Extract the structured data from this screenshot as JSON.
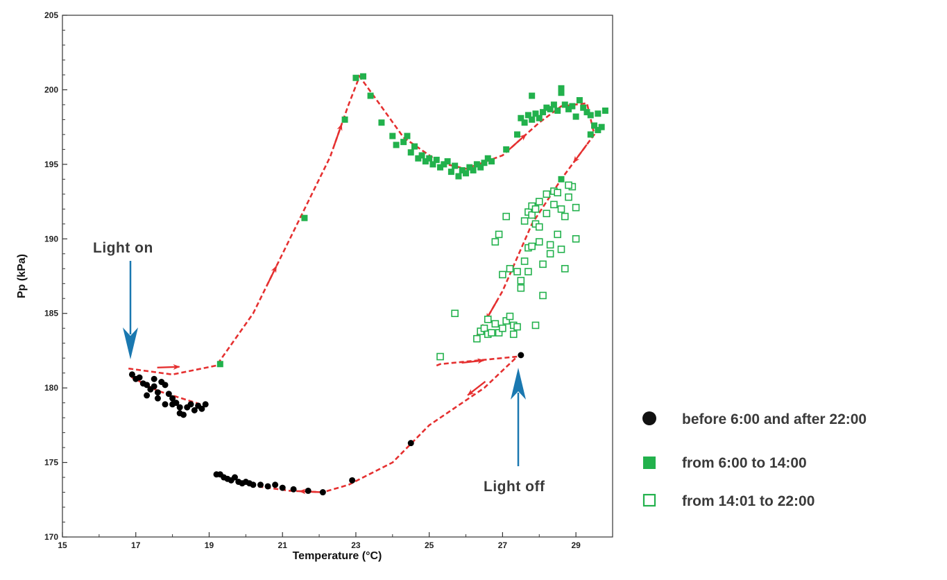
{
  "chart_data": {
    "type": "scatter",
    "title": "",
    "xlabel": "Temperature (°C)",
    "ylabel": "Pp (kPa)",
    "xlim": [
      15,
      30
    ],
    "ylim": [
      170,
      205
    ],
    "xticks": [
      15,
      17,
      19,
      21,
      23,
      25,
      27,
      29
    ],
    "yticks": [
      170,
      175,
      180,
      185,
      190,
      195,
      200,
      205
    ],
    "grid": false,
    "legend_position": "right",
    "colors": {
      "night": "#000000",
      "morning": "#22b14c",
      "afternoon": "#22b14c",
      "trajectory": "#e53030",
      "annotation_arrow": "#1a78b0"
    },
    "annotations": [
      {
        "text": "Light on",
        "x": 16.8,
        "y": 181.2
      },
      {
        "text": "Light off",
        "x": 27.4,
        "y": 182.0
      }
    ],
    "trajectory_path": [
      [
        16.8,
        181.3
      ],
      [
        18.0,
        180.9
      ],
      [
        19.2,
        181.5
      ],
      [
        20.2,
        185.0
      ],
      [
        21.3,
        190.5
      ],
      [
        22.3,
        195.5
      ],
      [
        22.8,
        199.0
      ],
      [
        23.1,
        200.9
      ],
      [
        23.6,
        199.2
      ],
      [
        24.3,
        196.8
      ],
      [
        25.3,
        195.1
      ],
      [
        26.0,
        194.7
      ],
      [
        27.0,
        195.6
      ],
      [
        28.0,
        197.8
      ],
      [
        28.6,
        198.9
      ],
      [
        29.3,
        199.1
      ],
      [
        29.5,
        197.0
      ],
      [
        28.6,
        194.0
      ],
      [
        27.8,
        191.0
      ],
      [
        27.0,
        186.5
      ],
      [
        26.3,
        183.5
      ],
      [
        25.2,
        181.5
      ],
      [
        25.3,
        181.6
      ],
      [
        27.4,
        182.1
      ],
      [
        26.5,
        180.0
      ],
      [
        25.0,
        177.5
      ],
      [
        24.0,
        175.0
      ],
      [
        22.8,
        173.5
      ],
      [
        22.1,
        173.0
      ],
      [
        21.2,
        173.1
      ],
      [
        20.3,
        173.4
      ],
      [
        19.3,
        174.1
      ],
      [
        16.9,
        180.7
      ],
      [
        17.6,
        179.8
      ],
      [
        18.9,
        178.8
      ]
    ],
    "series": [
      {
        "name": "before 6:00 and after 22:00",
        "marker": "circle-filled",
        "points": [
          [
            16.9,
            180.9
          ],
          [
            17.0,
            180.6
          ],
          [
            17.1,
            180.7
          ],
          [
            17.2,
            180.3
          ],
          [
            17.3,
            180.2
          ],
          [
            17.4,
            179.9
          ],
          [
            17.5,
            180.6
          ],
          [
            17.5,
            180.1
          ],
          [
            17.6,
            179.7
          ],
          [
            17.7,
            180.4
          ],
          [
            17.8,
            180.2
          ],
          [
            17.9,
            179.6
          ],
          [
            18.0,
            179.3
          ],
          [
            18.0,
            178.9
          ],
          [
            18.1,
            179.0
          ],
          [
            18.2,
            178.7
          ],
          [
            18.2,
            178.3
          ],
          [
            18.3,
            178.2
          ],
          [
            18.4,
            178.7
          ],
          [
            18.5,
            178.9
          ],
          [
            18.6,
            178.5
          ],
          [
            18.7,
            178.8
          ],
          [
            18.8,
            178.6
          ],
          [
            18.9,
            178.9
          ],
          [
            17.3,
            179.5
          ],
          [
            17.6,
            179.3
          ],
          [
            17.8,
            178.9
          ],
          [
            19.2,
            174.2
          ],
          [
            19.3,
            174.2
          ],
          [
            19.4,
            174.0
          ],
          [
            19.5,
            173.9
          ],
          [
            19.6,
            173.8
          ],
          [
            19.7,
            174.0
          ],
          [
            19.8,
            173.7
          ],
          [
            19.9,
            173.6
          ],
          [
            20.0,
            173.7
          ],
          [
            20.1,
            173.6
          ],
          [
            20.2,
            173.5
          ],
          [
            20.4,
            173.5
          ],
          [
            20.6,
            173.4
          ],
          [
            20.8,
            173.5
          ],
          [
            21.0,
            173.3
          ],
          [
            21.3,
            173.2
          ],
          [
            21.7,
            173.1
          ],
          [
            22.1,
            173.0
          ],
          [
            22.9,
            173.8
          ],
          [
            24.5,
            176.3
          ],
          [
            27.5,
            182.2
          ]
        ]
      },
      {
        "name": "from 6:00 to 14:00",
        "marker": "square-filled",
        "points": [
          [
            19.3,
            181.6
          ],
          [
            21.6,
            191.4
          ],
          [
            22.7,
            198.0
          ],
          [
            23.0,
            200.8
          ],
          [
            23.2,
            200.9
          ],
          [
            23.4,
            199.6
          ],
          [
            23.7,
            197.8
          ],
          [
            24.0,
            196.9
          ],
          [
            24.1,
            196.3
          ],
          [
            24.3,
            196.5
          ],
          [
            24.4,
            196.9
          ],
          [
            24.5,
            195.8
          ],
          [
            24.6,
            196.2
          ],
          [
            24.7,
            195.4
          ],
          [
            24.8,
            195.6
          ],
          [
            24.9,
            195.2
          ],
          [
            25.0,
            195.4
          ],
          [
            25.1,
            195.0
          ],
          [
            25.2,
            195.3
          ],
          [
            25.3,
            194.8
          ],
          [
            25.4,
            195.0
          ],
          [
            25.5,
            195.2
          ],
          [
            25.6,
            194.5
          ],
          [
            25.7,
            194.9
          ],
          [
            25.8,
            194.2
          ],
          [
            25.9,
            194.6
          ],
          [
            26.0,
            194.4
          ],
          [
            26.1,
            194.8
          ],
          [
            26.2,
            194.6
          ],
          [
            26.3,
            195.0
          ],
          [
            26.4,
            194.8
          ],
          [
            26.5,
            195.1
          ],
          [
            26.6,
            195.4
          ],
          [
            26.7,
            195.2
          ],
          [
            27.1,
            196.0
          ],
          [
            27.4,
            197.0
          ],
          [
            27.5,
            198.1
          ],
          [
            27.6,
            197.8
          ],
          [
            27.7,
            198.3
          ],
          [
            27.8,
            198.0
          ],
          [
            27.8,
            199.6
          ],
          [
            27.9,
            198.4
          ],
          [
            28.0,
            198.1
          ],
          [
            28.1,
            198.5
          ],
          [
            28.2,
            198.8
          ],
          [
            28.3,
            198.7
          ],
          [
            28.4,
            199.0
          ],
          [
            28.5,
            198.6
          ],
          [
            28.6,
            200.1
          ],
          [
            28.6,
            199.8
          ],
          [
            28.7,
            199.0
          ],
          [
            28.8,
            198.7
          ],
          [
            28.9,
            198.9
          ],
          [
            29.0,
            198.2
          ],
          [
            29.1,
            199.3
          ],
          [
            29.2,
            198.8
          ],
          [
            29.3,
            198.5
          ],
          [
            29.4,
            198.3
          ],
          [
            29.5,
            197.6
          ],
          [
            29.6,
            198.4
          ],
          [
            29.7,
            197.5
          ],
          [
            29.8,
            198.6
          ],
          [
            29.4,
            197.0
          ],
          [
            29.6,
            197.3
          ],
          [
            28.6,
            194.0
          ]
        ]
      },
      {
        "name": "from 14:01 to 22:00",
        "marker": "square-open",
        "points": [
          [
            25.3,
            182.1
          ],
          [
            25.7,
            185.0
          ],
          [
            26.3,
            183.3
          ],
          [
            26.4,
            183.8
          ],
          [
            26.5,
            184.0
          ],
          [
            26.6,
            184.6
          ],
          [
            26.6,
            183.6
          ],
          [
            26.7,
            183.7
          ],
          [
            26.8,
            184.3
          ],
          [
            26.8,
            189.8
          ],
          [
            26.9,
            190.3
          ],
          [
            26.9,
            183.7
          ],
          [
            27.0,
            184.0
          ],
          [
            27.0,
            187.6
          ],
          [
            27.1,
            191.5
          ],
          [
            27.1,
            184.5
          ],
          [
            27.2,
            188.0
          ],
          [
            27.2,
            184.8
          ],
          [
            27.3,
            184.2
          ],
          [
            27.3,
            183.6
          ],
          [
            27.4,
            187.8
          ],
          [
            27.4,
            184.1
          ],
          [
            27.5,
            186.7
          ],
          [
            27.5,
            187.2
          ],
          [
            27.6,
            188.5
          ],
          [
            27.6,
            191.2
          ],
          [
            27.7,
            187.8
          ],
          [
            27.7,
            191.8
          ],
          [
            27.7,
            189.4
          ],
          [
            27.8,
            192.2
          ],
          [
            27.8,
            191.6
          ],
          [
            27.8,
            189.5
          ],
          [
            27.9,
            192.0
          ],
          [
            27.9,
            191.0
          ],
          [
            27.9,
            184.2
          ],
          [
            28.0,
            190.8
          ],
          [
            28.0,
            192.5
          ],
          [
            28.0,
            189.8
          ],
          [
            28.1,
            188.3
          ],
          [
            28.1,
            186.2
          ],
          [
            28.2,
            191.7
          ],
          [
            28.2,
            193.0
          ],
          [
            28.3,
            189.6
          ],
          [
            28.3,
            189.0
          ],
          [
            28.4,
            192.3
          ],
          [
            28.4,
            193.2
          ],
          [
            28.5,
            190.3
          ],
          [
            28.5,
            193.1
          ],
          [
            28.6,
            192.0
          ],
          [
            28.6,
            189.3
          ],
          [
            28.7,
            191.5
          ],
          [
            28.7,
            188.0
          ],
          [
            28.8,
            192.8
          ],
          [
            28.9,
            193.5
          ],
          [
            29.0,
            192.1
          ],
          [
            29.0,
            190.0
          ],
          [
            28.8,
            193.6
          ]
        ]
      }
    ]
  }
}
